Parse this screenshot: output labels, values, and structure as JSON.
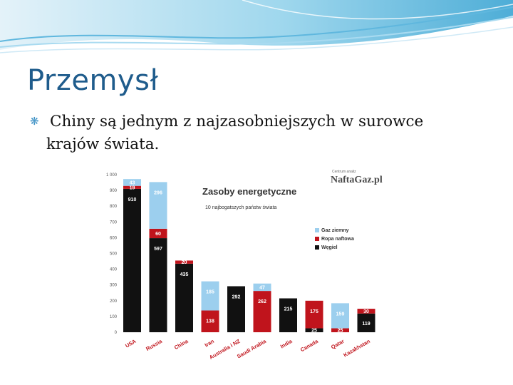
{
  "slide": {
    "title": "Przemysł",
    "bullet_line1": "Chiny są jednym z najzasobniejszych w surowce",
    "bullet_line2": "krajów świata."
  },
  "chart_data": {
    "type": "bar",
    "stacked": true,
    "title": "Zasoby energetyczne",
    "subtitle": "10 najbogatszych państw świata",
    "ylabel": "",
    "source": "NaftaGaz.pl",
    "source_tag": "Centrum analiz",
    "ylim": [
      0,
      1000
    ],
    "yticks": [
      "0",
      "100",
      "200",
      "300",
      "400",
      "500",
      "600",
      "700",
      "800",
      "900",
      "1 000"
    ],
    "categories": [
      "USA",
      "Russia",
      "China",
      "Iran",
      "Australia i NZ",
      "Saudi Arabia",
      "India",
      "Canada",
      "Qatar",
      "Kazakhstan"
    ],
    "series": [
      {
        "name": "Węgiel",
        "color": "#111111",
        "values": [
          910,
          597,
          435,
          0,
          292,
          0,
          215,
          25,
          0,
          119
        ]
      },
      {
        "name": "Ropa naftowa",
        "color": "#c0141c",
        "values": [
          19,
          60,
          20,
          138,
          0,
          262,
          0,
          175,
          25,
          30
        ]
      },
      {
        "name": "Gaz ziemny",
        "color": "#9ccfee",
        "values": [
          43,
          296,
          0,
          185,
          0,
          47,
          0,
          0,
          159,
          0
        ]
      }
    ],
    "data_labels": [
      [
        "910",
        "19",
        "43"
      ],
      [
        "597",
        "60",
        "296"
      ],
      [
        "435",
        "20",
        ""
      ],
      [
        "",
        "138",
        "185"
      ],
      [
        "292",
        "",
        ""
      ],
      [
        "",
        "262",
        "47"
      ],
      [
        "215",
        "",
        ""
      ],
      [
        "25",
        "175",
        ""
      ],
      [
        "",
        "25",
        "159"
      ],
      [
        "119",
        "30",
        ""
      ]
    ],
    "legend_position": "right",
    "grid": false
  }
}
